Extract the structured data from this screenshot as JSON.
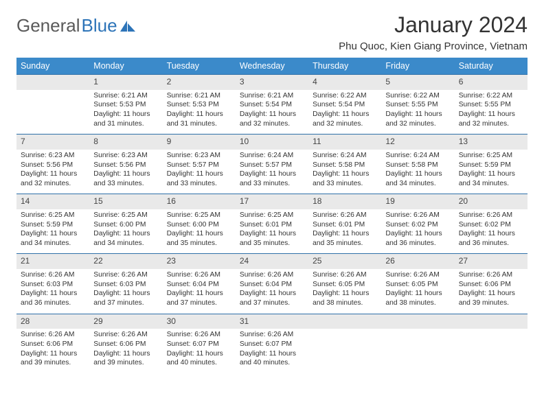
{
  "brand": {
    "part1": "General",
    "part2": "Blue"
  },
  "title": "January 2024",
  "location": "Phu Quoc, Kien Giang Province, Vietnam",
  "colors": {
    "header_bg": "#3b8aca",
    "row_divider": "#2d6fa8",
    "daynum_bg": "#e9e9e9",
    "brand_gray": "#5a5a5a",
    "brand_blue": "#2d74b8"
  },
  "weekdays": [
    "Sunday",
    "Monday",
    "Tuesday",
    "Wednesday",
    "Thursday",
    "Friday",
    "Saturday"
  ],
  "weeks": [
    [
      null,
      {
        "n": "1",
        "sr": "6:21 AM",
        "ss": "5:53 PM",
        "dl": "11 hours and 31 minutes."
      },
      {
        "n": "2",
        "sr": "6:21 AM",
        "ss": "5:53 PM",
        "dl": "11 hours and 31 minutes."
      },
      {
        "n": "3",
        "sr": "6:21 AM",
        "ss": "5:54 PM",
        "dl": "11 hours and 32 minutes."
      },
      {
        "n": "4",
        "sr": "6:22 AM",
        "ss": "5:54 PM",
        "dl": "11 hours and 32 minutes."
      },
      {
        "n": "5",
        "sr": "6:22 AM",
        "ss": "5:55 PM",
        "dl": "11 hours and 32 minutes."
      },
      {
        "n": "6",
        "sr": "6:22 AM",
        "ss": "5:55 PM",
        "dl": "11 hours and 32 minutes."
      }
    ],
    [
      {
        "n": "7",
        "sr": "6:23 AM",
        "ss": "5:56 PM",
        "dl": "11 hours and 32 minutes."
      },
      {
        "n": "8",
        "sr": "6:23 AM",
        "ss": "5:56 PM",
        "dl": "11 hours and 33 minutes."
      },
      {
        "n": "9",
        "sr": "6:23 AM",
        "ss": "5:57 PM",
        "dl": "11 hours and 33 minutes."
      },
      {
        "n": "10",
        "sr": "6:24 AM",
        "ss": "5:57 PM",
        "dl": "11 hours and 33 minutes."
      },
      {
        "n": "11",
        "sr": "6:24 AM",
        "ss": "5:58 PM",
        "dl": "11 hours and 33 minutes."
      },
      {
        "n": "12",
        "sr": "6:24 AM",
        "ss": "5:58 PM",
        "dl": "11 hours and 34 minutes."
      },
      {
        "n": "13",
        "sr": "6:25 AM",
        "ss": "5:59 PM",
        "dl": "11 hours and 34 minutes."
      }
    ],
    [
      {
        "n": "14",
        "sr": "6:25 AM",
        "ss": "5:59 PM",
        "dl": "11 hours and 34 minutes."
      },
      {
        "n": "15",
        "sr": "6:25 AM",
        "ss": "6:00 PM",
        "dl": "11 hours and 34 minutes."
      },
      {
        "n": "16",
        "sr": "6:25 AM",
        "ss": "6:00 PM",
        "dl": "11 hours and 35 minutes."
      },
      {
        "n": "17",
        "sr": "6:25 AM",
        "ss": "6:01 PM",
        "dl": "11 hours and 35 minutes."
      },
      {
        "n": "18",
        "sr": "6:26 AM",
        "ss": "6:01 PM",
        "dl": "11 hours and 35 minutes."
      },
      {
        "n": "19",
        "sr": "6:26 AM",
        "ss": "6:02 PM",
        "dl": "11 hours and 36 minutes."
      },
      {
        "n": "20",
        "sr": "6:26 AM",
        "ss": "6:02 PM",
        "dl": "11 hours and 36 minutes."
      }
    ],
    [
      {
        "n": "21",
        "sr": "6:26 AM",
        "ss": "6:03 PM",
        "dl": "11 hours and 36 minutes."
      },
      {
        "n": "22",
        "sr": "6:26 AM",
        "ss": "6:03 PM",
        "dl": "11 hours and 37 minutes."
      },
      {
        "n": "23",
        "sr": "6:26 AM",
        "ss": "6:04 PM",
        "dl": "11 hours and 37 minutes."
      },
      {
        "n": "24",
        "sr": "6:26 AM",
        "ss": "6:04 PM",
        "dl": "11 hours and 37 minutes."
      },
      {
        "n": "25",
        "sr": "6:26 AM",
        "ss": "6:05 PM",
        "dl": "11 hours and 38 minutes."
      },
      {
        "n": "26",
        "sr": "6:26 AM",
        "ss": "6:05 PM",
        "dl": "11 hours and 38 minutes."
      },
      {
        "n": "27",
        "sr": "6:26 AM",
        "ss": "6:06 PM",
        "dl": "11 hours and 39 minutes."
      }
    ],
    [
      {
        "n": "28",
        "sr": "6:26 AM",
        "ss": "6:06 PM",
        "dl": "11 hours and 39 minutes."
      },
      {
        "n": "29",
        "sr": "6:26 AM",
        "ss": "6:06 PM",
        "dl": "11 hours and 39 minutes."
      },
      {
        "n": "30",
        "sr": "6:26 AM",
        "ss": "6:07 PM",
        "dl": "11 hours and 40 minutes."
      },
      {
        "n": "31",
        "sr": "6:26 AM",
        "ss": "6:07 PM",
        "dl": "11 hours and 40 minutes."
      },
      null,
      null,
      null
    ]
  ],
  "labels": {
    "sunrise": "Sunrise:",
    "sunset": "Sunset:",
    "daylight": "Daylight:"
  }
}
